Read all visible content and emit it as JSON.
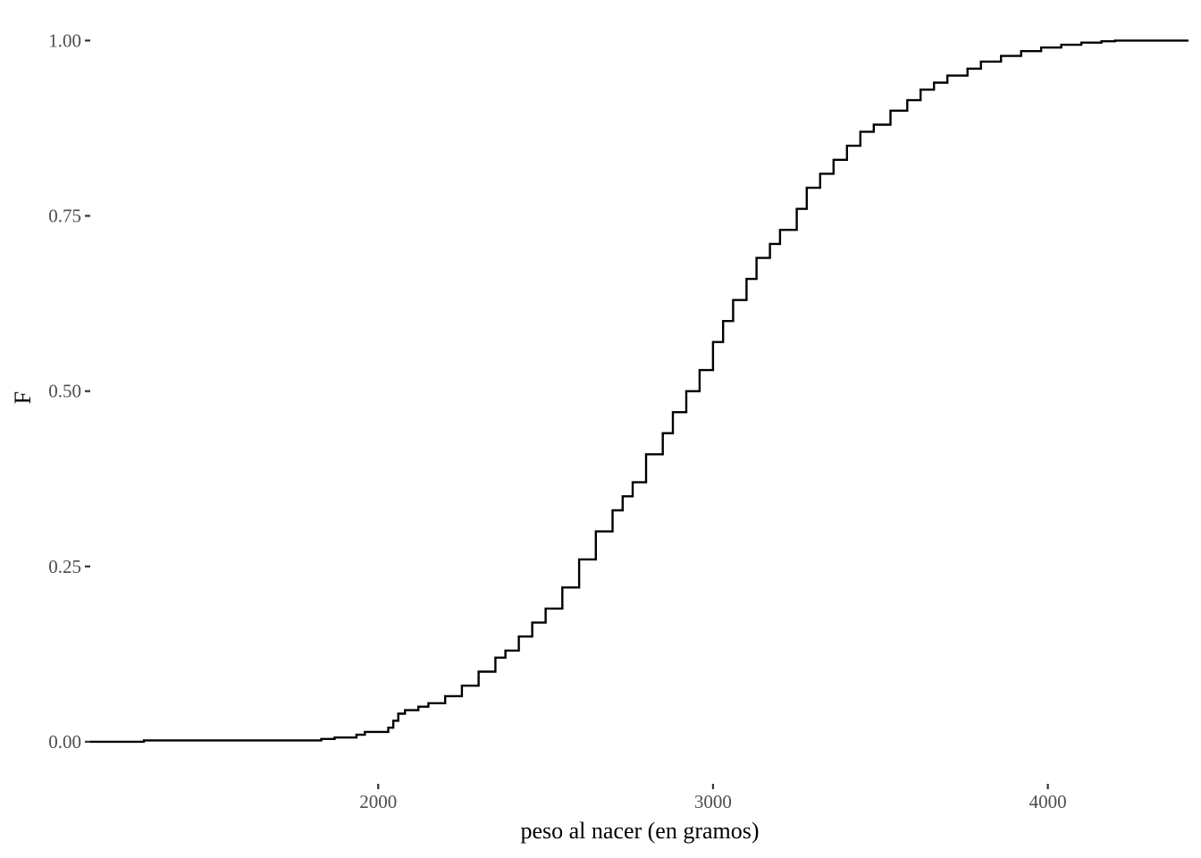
{
  "chart_data": {
    "type": "line",
    "subtype": "ecdf-step",
    "title": "",
    "xlabel": "peso al nacer (en gramos)",
    "ylabel": "F",
    "xlim": [
      1140,
      4420
    ],
    "ylim": [
      -0.06,
      1.04
    ],
    "x_ticks": [
      {
        "value": 2000,
        "label": "2000"
      },
      {
        "value": 3000,
        "label": "3000"
      },
      {
        "value": 4000,
        "label": "4000"
      }
    ],
    "y_ticks": [
      {
        "value": 0.0,
        "label": "0.00"
      },
      {
        "value": 0.25,
        "label": "0.25"
      },
      {
        "value": 0.5,
        "label": "0.50"
      },
      {
        "value": 0.75,
        "label": "0.75"
      },
      {
        "value": 1.0,
        "label": "1.00"
      }
    ],
    "grid": false,
    "legend": "none",
    "series": [
      {
        "x": [
          1140,
          1300,
          1830,
          1870,
          1935,
          1960,
          2030,
          2045,
          2060,
          2080,
          2120,
          2150,
          2200,
          2250,
          2300,
          2350,
          2380,
          2420,
          2460,
          2500,
          2550,
          2600,
          2650,
          2700,
          2730,
          2760,
          2800,
          2850,
          2880,
          2920,
          2960,
          3000,
          3030,
          3060,
          3100,
          3130,
          3170,
          3200,
          3250,
          3280,
          3320,
          3360,
          3400,
          3440,
          3480,
          3530,
          3580,
          3620,
          3660,
          3700,
          3760,
          3800,
          3860,
          3920,
          3980,
          4040,
          4100,
          4160,
          4200,
          4280,
          4420
        ],
        "y": [
          0,
          0.002,
          0.004,
          0.006,
          0.01,
          0.014,
          0.02,
          0.03,
          0.04,
          0.045,
          0.05,
          0.055,
          0.065,
          0.08,
          0.1,
          0.12,
          0.13,
          0.15,
          0.17,
          0.19,
          0.22,
          0.26,
          0.3,
          0.33,
          0.35,
          0.37,
          0.41,
          0.44,
          0.47,
          0.5,
          0.53,
          0.57,
          0.6,
          0.63,
          0.66,
          0.69,
          0.71,
          0.73,
          0.76,
          0.79,
          0.81,
          0.83,
          0.85,
          0.87,
          0.88,
          0.9,
          0.915,
          0.93,
          0.94,
          0.95,
          0.96,
          0.97,
          0.978,
          0.985,
          0.99,
          0.994,
          0.997,
          0.999,
          1.0,
          1.0,
          1.0
        ]
      }
    ]
  }
}
